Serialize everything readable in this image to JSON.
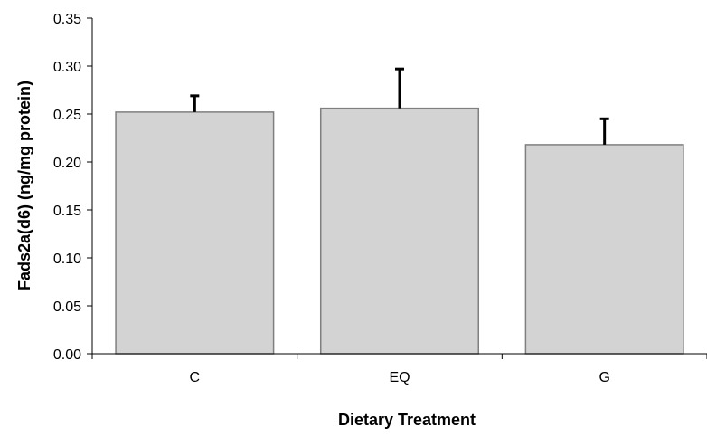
{
  "chart_data": {
    "type": "bar",
    "title": "",
    "xlabel": "Dietary Treatment",
    "ylabel": "Fads2a(d6) (ng/mg protein)",
    "categories": [
      "C",
      "EQ",
      "G"
    ],
    "values": [
      0.252,
      0.256,
      0.218
    ],
    "error_bars": [
      0.017,
      0.041,
      0.027
    ],
    "ylim": [
      0,
      0.35
    ],
    "yticks": [
      "0.00",
      "0.05",
      "0.10",
      "0.15",
      "0.20",
      "0.25",
      "0.30",
      "0.35"
    ],
    "grid": false,
    "legend": "none",
    "colors": {
      "bar_fill": "#d3d3d3",
      "bar_stroke": "#7f7f7f",
      "error_bar": "#000000",
      "axis": "#000000"
    }
  }
}
